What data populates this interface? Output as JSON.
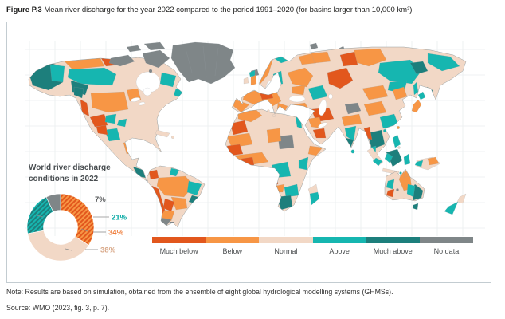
{
  "figure": {
    "title_prefix": "Figure P.3",
    "title": " Mean river discharge for the year 2022 compared to the period 1991–2020 (for basins larger than 10,000 km²)"
  },
  "chart": {
    "title_line1": "World river discharge",
    "title_line2": "conditions in 2022"
  },
  "chart_data": {
    "type": "pie",
    "subtype": "donut",
    "title": "World river discharge conditions in 2022",
    "segments": [
      {
        "label": "Below or much below (hatched orange)",
        "value": 34,
        "style": "hatch-orange"
      },
      {
        "label": "Normal",
        "value": 38,
        "style": "normal"
      },
      {
        "label": "Above or much above (hatched teal)",
        "value": 21,
        "style": "hatch-teal"
      },
      {
        "label": "No data",
        "value": 7,
        "style": "no-data"
      }
    ],
    "callouts": [
      {
        "text": "7%"
      },
      {
        "text": "21%"
      },
      {
        "text": "34%"
      },
      {
        "text": "38%"
      }
    ],
    "start_angle_deg": 0,
    "clockwise": true,
    "legend_position": "right-callouts"
  },
  "legend": {
    "items": [
      {
        "label": "Much below"
      },
      {
        "label": "Below"
      },
      {
        "label": "Normal"
      },
      {
        "label": "Above"
      },
      {
        "label": "Much above"
      },
      {
        "label": "No data"
      }
    ]
  },
  "map": {
    "categories": [
      "Much below",
      "Below",
      "Normal",
      "Above",
      "Much above",
      "No data"
    ]
  },
  "notes": {
    "note": "Note: Results are based on simulation, obtained from the ensemble of eight global hydrological modelling systems (GHMSs).",
    "source": "Source: WMO (2023, fig. 3, p. 7)."
  },
  "colors": {
    "much_below": "#e2571d",
    "below": "#f79645",
    "normal": "#f2d8c6",
    "above": "#16b6b0",
    "much_above": "#1d7f7c",
    "no_data": "#7f8688",
    "callout_7": "#56585a",
    "callout_21": "#00a7a2",
    "callout_34": "#ef7d3b",
    "callout_38": "#d9a888"
  }
}
